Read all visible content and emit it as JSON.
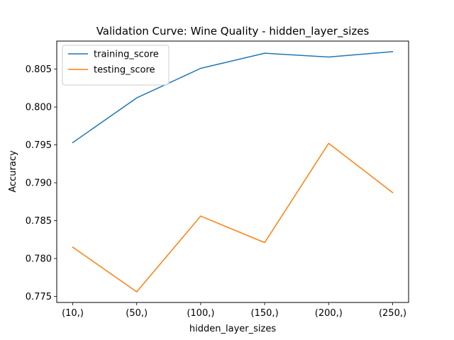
{
  "chart_data": {
    "type": "line",
    "title": "Validation Curve: Wine Quality - hidden_layer_sizes",
    "xlabel": "hidden_layer_sizes",
    "ylabel": "Accuracy",
    "categories": [
      "(10,)",
      "(50,)",
      "(100,)",
      "(150,)",
      "(200,)",
      "(250,)"
    ],
    "series": [
      {
        "name": "training_score",
        "color": "#1f77b4",
        "values": [
          0.7953,
          0.8012,
          0.8051,
          0.8071,
          0.8066,
          0.8073
        ]
      },
      {
        "name": "testing_score",
        "color": "#ff7f0e",
        "values": [
          0.7815,
          0.7756,
          0.7856,
          0.7821,
          0.7952,
          0.7887
        ]
      }
    ],
    "ylim": [
      0.7742,
      0.8087
    ],
    "yticks": [
      0.775,
      0.78,
      0.785,
      0.79,
      0.795,
      0.8,
      0.805
    ],
    "ytick_labels": [
      "0.775",
      "0.780",
      "0.785",
      "0.790",
      "0.795",
      "0.800",
      "0.805"
    ],
    "grid": false,
    "legend_position": "top-left"
  }
}
